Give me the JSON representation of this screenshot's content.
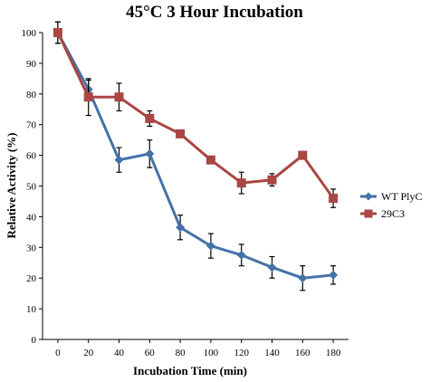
{
  "chart_data": {
    "type": "line",
    "title": "45°C 3 Hour Incubation",
    "xlabel": "Incubation Time (min)",
    "ylabel": "Relative Activity (%)",
    "x": [
      0,
      20,
      40,
      60,
      80,
      100,
      120,
      140,
      160,
      180
    ],
    "x_ticks": [
      "0",
      "20",
      "40",
      "60",
      "80",
      "100",
      "120",
      "140",
      "160",
      "180"
    ],
    "y_ticks": [
      "0",
      "10",
      "20",
      "30",
      "40",
      "50",
      "60",
      "70",
      "80",
      "90",
      "100"
    ],
    "xlim": [
      -10,
      190
    ],
    "ylim": [
      0,
      100
    ],
    "grid": false,
    "legend_position": "right",
    "series": [
      {
        "name": "WT PlyC",
        "color": "#4572a7",
        "marker": "diamond",
        "values": [
          100,
          81.5,
          58.5,
          60.5,
          36.5,
          30.5,
          27.5,
          23.5,
          20,
          21
        ],
        "errors": [
          3.5,
          3,
          4,
          4.5,
          4,
          4,
          3.5,
          3.5,
          4,
          3
        ]
      },
      {
        "name": "29C3",
        "color": "#aa4643",
        "marker": "square",
        "values": [
          100,
          79,
          79,
          72,
          67,
          58.5,
          51,
          52,
          60,
          46
        ],
        "errors": [
          3.5,
          6,
          4.5,
          2.5,
          0,
          0,
          3.5,
          2,
          0,
          3
        ]
      }
    ]
  }
}
